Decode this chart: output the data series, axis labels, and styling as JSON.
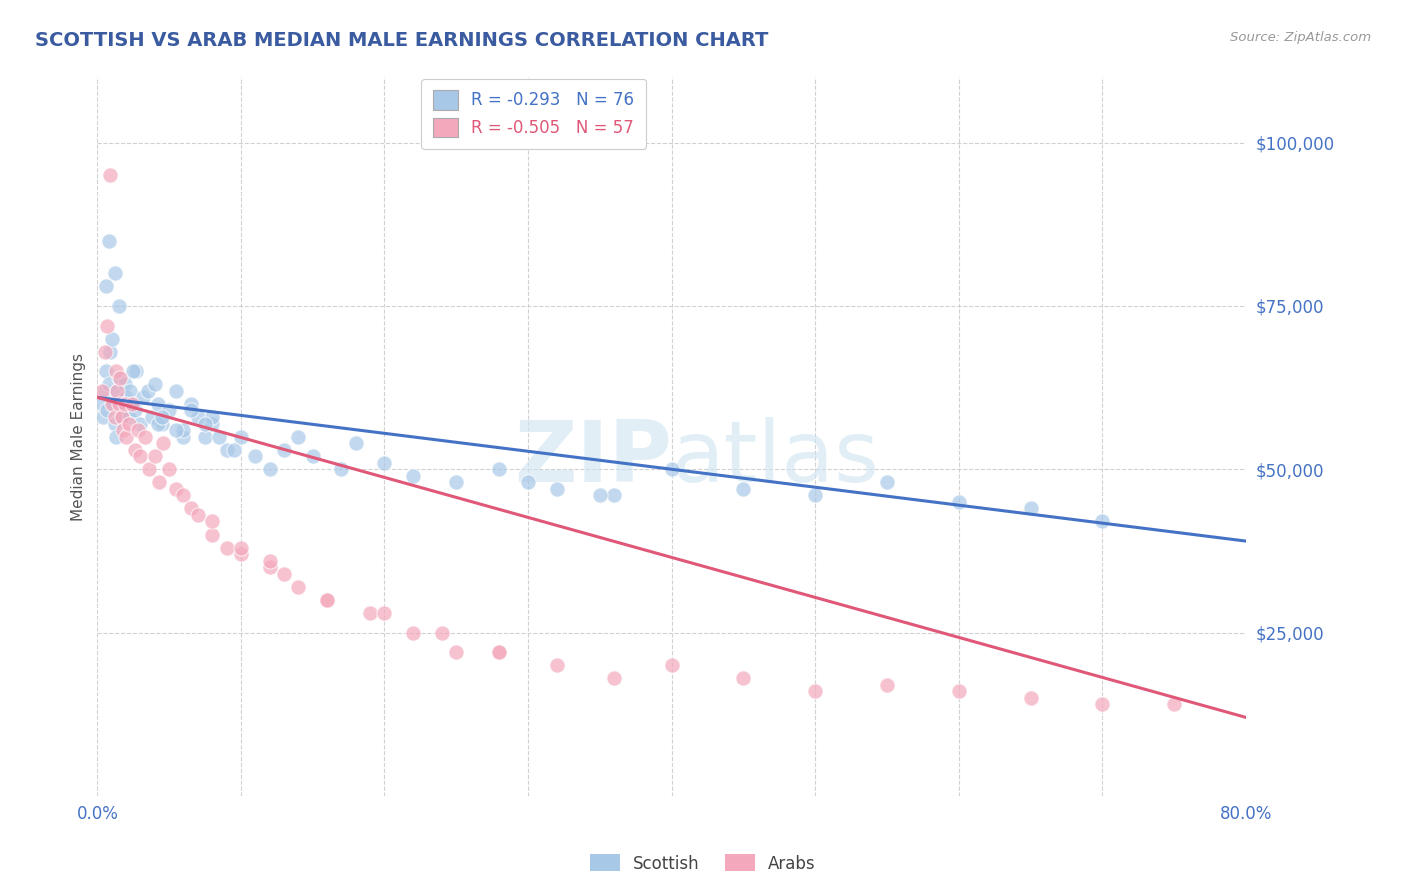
{
  "title": "SCOTTISH VS ARAB MEDIAN MALE EARNINGS CORRELATION CHART",
  "source": "Source: ZipAtlas.com",
  "ylabel": "Median Male Earnings",
  "xlim": [
    0.0,
    0.8
  ],
  "ylim": [
    0,
    110000
  ],
  "yticks": [
    0,
    25000,
    50000,
    75000,
    100000
  ],
  "ytick_labels": [
    "",
    "$25,000",
    "$50,000",
    "$75,000",
    "$100,000"
  ],
  "xtick_positions": [
    0.0,
    0.1,
    0.2,
    0.3,
    0.4,
    0.5,
    0.6,
    0.7,
    0.8
  ],
  "xtick_labels": [
    "0.0%",
    "",
    "",
    "",
    "",
    "",
    "",
    "",
    "80.0%"
  ],
  "scottish_R": -0.293,
  "scottish_N": 76,
  "arab_R": -0.505,
  "arab_N": 57,
  "scottish_color": "#A8C8E8",
  "arab_color": "#F4A8BC",
  "scottish_line_color": "#4472C4",
  "arab_line_color": "#E05878",
  "background_color": "#FFFFFF",
  "grid_color": "#CCCCCC",
  "title_color": "#3A5BA0",
  "axis_label_color": "#555555",
  "tick_label_color": "#4472C4",
  "watermark_color": "#D8E8F0",
  "legend_entries": [
    "Scottish",
    "Arabs"
  ],
  "scottish_line_x0": 0.0,
  "scottish_line_y0": 61000,
  "scottish_line_x1": 0.8,
  "scottish_line_y1": 39000,
  "arab_line_x0": 0.0,
  "arab_line_y0": 61000,
  "arab_line_x1": 0.8,
  "arab_line_y1": 12000,
  "scottish_x": [
    0.003,
    0.004,
    0.005,
    0.006,
    0.007,
    0.008,
    0.009,
    0.01,
    0.011,
    0.012,
    0.013,
    0.014,
    0.015,
    0.016,
    0.017,
    0.018,
    0.019,
    0.02,
    0.021,
    0.022,
    0.023,
    0.025,
    0.026,
    0.027,
    0.03,
    0.032,
    0.035,
    0.038,
    0.04,
    0.042,
    0.045,
    0.05,
    0.055,
    0.06,
    0.065,
    0.07,
    0.075,
    0.08,
    0.09,
    0.1,
    0.11,
    0.12,
    0.13,
    0.15,
    0.17,
    0.2,
    0.22,
    0.25,
    0.28,
    0.32,
    0.36,
    0.4,
    0.45,
    0.5,
    0.55,
    0.6,
    0.65,
    0.7,
    0.35,
    0.3,
    0.18,
    0.14,
    0.08,
    0.06,
    0.042,
    0.025,
    0.015,
    0.012,
    0.008,
    0.006,
    0.045,
    0.055,
    0.065,
    0.075,
    0.085,
    0.095
  ],
  "scottish_y": [
    60000,
    58000,
    62000,
    65000,
    59000,
    63000,
    68000,
    70000,
    60000,
    57000,
    55000,
    62000,
    64000,
    60000,
    58000,
    59000,
    63000,
    61000,
    60000,
    58000,
    62000,
    60000,
    59000,
    65000,
    57000,
    61000,
    62000,
    58000,
    63000,
    60000,
    57000,
    59000,
    62000,
    55000,
    60000,
    58000,
    55000,
    57000,
    53000,
    55000,
    52000,
    50000,
    53000,
    52000,
    50000,
    51000,
    49000,
    48000,
    50000,
    47000,
    46000,
    50000,
    47000,
    46000,
    48000,
    45000,
    44000,
    42000,
    46000,
    48000,
    54000,
    55000,
    58000,
    56000,
    57000,
    65000,
    75000,
    80000,
    85000,
    78000,
    58000,
    56000,
    59000,
    57000,
    55000,
    53000
  ],
  "arab_x": [
    0.003,
    0.005,
    0.007,
    0.009,
    0.01,
    0.012,
    0.013,
    0.014,
    0.015,
    0.016,
    0.017,
    0.018,
    0.019,
    0.02,
    0.022,
    0.024,
    0.026,
    0.028,
    0.03,
    0.033,
    0.036,
    0.04,
    0.043,
    0.046,
    0.05,
    0.055,
    0.06,
    0.065,
    0.07,
    0.08,
    0.09,
    0.1,
    0.12,
    0.14,
    0.16,
    0.19,
    0.22,
    0.25,
    0.28,
    0.32,
    0.36,
    0.4,
    0.45,
    0.5,
    0.55,
    0.6,
    0.65,
    0.7,
    0.75,
    0.08,
    0.1,
    0.13,
    0.16,
    0.2,
    0.24,
    0.28,
    0.12
  ],
  "arab_y": [
    62000,
    68000,
    72000,
    95000,
    60000,
    58000,
    65000,
    62000,
    60000,
    64000,
    58000,
    56000,
    60000,
    55000,
    57000,
    60000,
    53000,
    56000,
    52000,
    55000,
    50000,
    52000,
    48000,
    54000,
    50000,
    47000,
    46000,
    44000,
    43000,
    40000,
    38000,
    37000,
    35000,
    32000,
    30000,
    28000,
    25000,
    22000,
    22000,
    20000,
    18000,
    20000,
    18000,
    16000,
    17000,
    16000,
    15000,
    14000,
    14000,
    42000,
    38000,
    34000,
    30000,
    28000,
    25000,
    22000,
    36000
  ]
}
